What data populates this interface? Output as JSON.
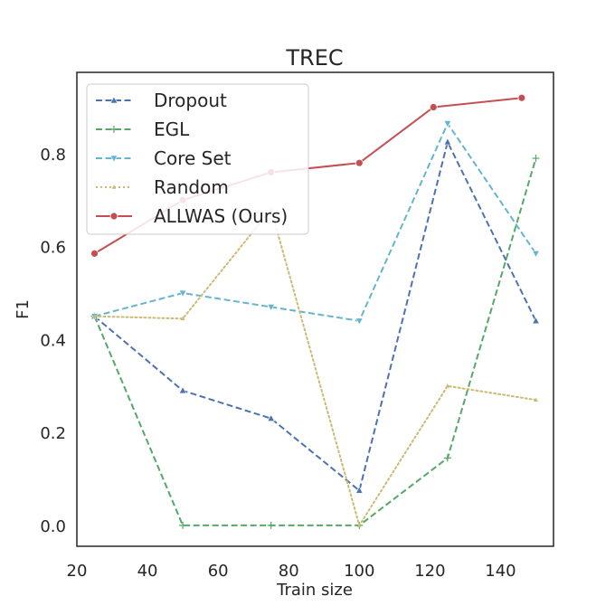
{
  "chart_data": {
    "type": "line",
    "title": "TREC",
    "xlabel": "Train size",
    "ylabel": "F1",
    "xlim": [
      20,
      155
    ],
    "ylim": [
      -0.045,
      0.975
    ],
    "xticks": [
      20,
      40,
      60,
      80,
      100,
      120,
      140
    ],
    "yticks": [
      0.0,
      0.2,
      0.4,
      0.6,
      0.8
    ],
    "ytick_labels": [
      "0.0",
      "0.2",
      "0.4",
      "0.6",
      "0.8"
    ],
    "grid": false,
    "legend_position": "upper-left",
    "series": [
      {
        "name": "Dropout",
        "color": "#4c72b0",
        "linestyle": "dashed",
        "marker": "triangle-up",
        "x": [
          25,
          50,
          75,
          100,
          125,
          150
        ],
        "y": [
          0.45,
          0.29,
          0.23,
          0.075,
          0.825,
          0.44
        ]
      },
      {
        "name": "EGL",
        "color": "#55a868",
        "linestyle": "dashed",
        "marker": "plus",
        "x": [
          25,
          50,
          75,
          100,
          125,
          150
        ],
        "y": [
          0.45,
          0.0,
          0.0,
          0.0,
          0.145,
          0.79
        ]
      },
      {
        "name": "Core Set",
        "color": "#64b5cd",
        "linestyle": "dashed",
        "marker": "triangle-down",
        "x": [
          25,
          50,
          75,
          100,
          125,
          150
        ],
        "y": [
          0.45,
          0.5,
          0.47,
          0.44,
          0.865,
          0.585
        ]
      },
      {
        "name": "Random",
        "color": "#ccb974",
        "linestyle": "dotted",
        "marker": "small-triangle",
        "x": [
          25,
          50,
          75,
          100,
          125,
          150
        ],
        "y": [
          0.45,
          0.445,
          0.68,
          0.0,
          0.3,
          0.27
        ]
      },
      {
        "name": "ALLWAS (Ours)",
        "color": "#c44e52",
        "linestyle": "solid",
        "marker": "circle",
        "x": [
          25,
          50,
          75,
          100,
          121,
          146
        ],
        "y": [
          0.585,
          0.7,
          0.76,
          0.78,
          0.9,
          0.92
        ]
      }
    ]
  }
}
